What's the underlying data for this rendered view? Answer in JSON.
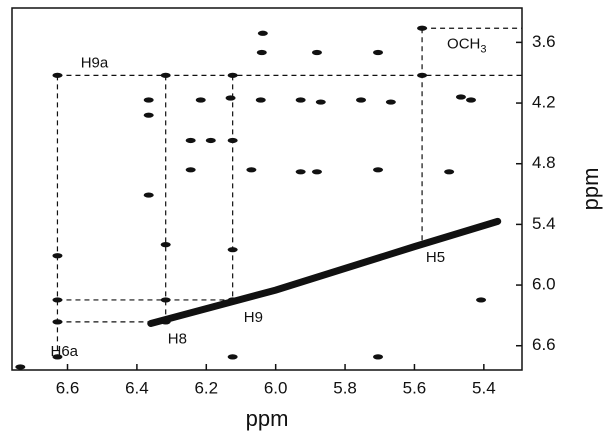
{
  "chart_data": {
    "type": "contour",
    "x_label": "ppm",
    "y_label": "ppm",
    "xlim": [
      6.76,
      5.29
    ],
    "ylim": [
      3.26,
      6.84
    ],
    "xticks": [
      6.6,
      6.4,
      6.2,
      {
        "value": 6.0,
        "label": "6.0"
      },
      5.8,
      5.6,
      5.4
    ],
    "yticks": [
      3.6,
      4.2,
      4.8,
      5.4,
      {
        "value": 6.0,
        "label": "6.0"
      },
      6.6
    ],
    "color": "#111111",
    "peaks": {
      "x": [
        5.578,
        6.037,
        5.881,
        6.04,
        5.705,
        6.629,
        6.317,
        6.124,
        5.578,
        6.366,
        6.366,
        6.216,
        6.13,
        6.043,
        5.928,
        5.87,
        5.754,
        5.668,
        5.466,
        5.437,
        6.245,
        6.187,
        6.124,
        6.245,
        6.07,
        5.928,
        5.881,
        5.705,
        5.5,
        6.366,
        6.629,
        6.317,
        6.124,
        6.629,
        6.317,
        6.124,
        5.408,
        6.629,
        6.317,
        6.629,
        6.124,
        5.705,
        6.736
      ],
      "y": [
        3.46,
        3.51,
        3.7,
        3.7,
        3.7,
        3.926,
        3.926,
        3.926,
        3.926,
        4.17,
        4.32,
        4.17,
        4.15,
        4.17,
        4.17,
        4.19,
        4.17,
        4.19,
        4.14,
        4.17,
        4.57,
        4.57,
        4.57,
        4.86,
        4.86,
        4.88,
        4.88,
        4.86,
        4.88,
        5.11,
        5.71,
        5.6,
        5.65,
        6.147,
        6.147,
        6.147,
        6.147,
        6.364,
        6.364,
        6.71,
        6.71,
        6.71,
        6.81
      ]
    },
    "diagonal": {
      "x": [
        6.36,
        6.0,
        5.6,
        5.36
      ],
      "y": [
        6.38,
        6.05,
        5.62,
        5.37
      ]
    },
    "guides": [
      {
        "x": [
          6.629,
          5.29
        ],
        "y": [
          3.926,
          3.926
        ]
      },
      {
        "x": [
          5.578,
          5.29
        ],
        "y": [
          3.46,
          3.46
        ]
      },
      {
        "x": [
          6.629,
          6.629
        ],
        "y": [
          3.926,
          6.71
        ]
      },
      {
        "x": [
          6.317,
          6.317
        ],
        "y": [
          3.926,
          6.364
        ]
      },
      {
        "x": [
          6.124,
          6.124
        ],
        "y": [
          3.926,
          6.147
        ]
      },
      {
        "x": [
          5.578,
          5.578
        ],
        "y": [
          3.46,
          5.574
        ]
      },
      {
        "x": [
          6.629,
          6.124
        ],
        "y": [
          6.147,
          6.147
        ]
      },
      {
        "x": [
          6.629,
          6.317
        ],
        "y": [
          6.364,
          6.364
        ]
      }
    ],
    "annotations": [
      {
        "text": "H9a",
        "x": 6.562,
        "y": 3.807
      },
      {
        "text": "OCH",
        "sub": "3",
        "x": 5.506,
        "y": 3.62
      },
      {
        "text": "H5",
        "x": 5.567,
        "y": 5.732
      },
      {
        "text": "H9",
        "x": 6.092,
        "y": 6.325
      },
      {
        "text": "H8",
        "x": 6.311,
        "y": 6.54
      },
      {
        "text": "H6a",
        "x": 6.649,
        "y": 6.66
      }
    ]
  }
}
